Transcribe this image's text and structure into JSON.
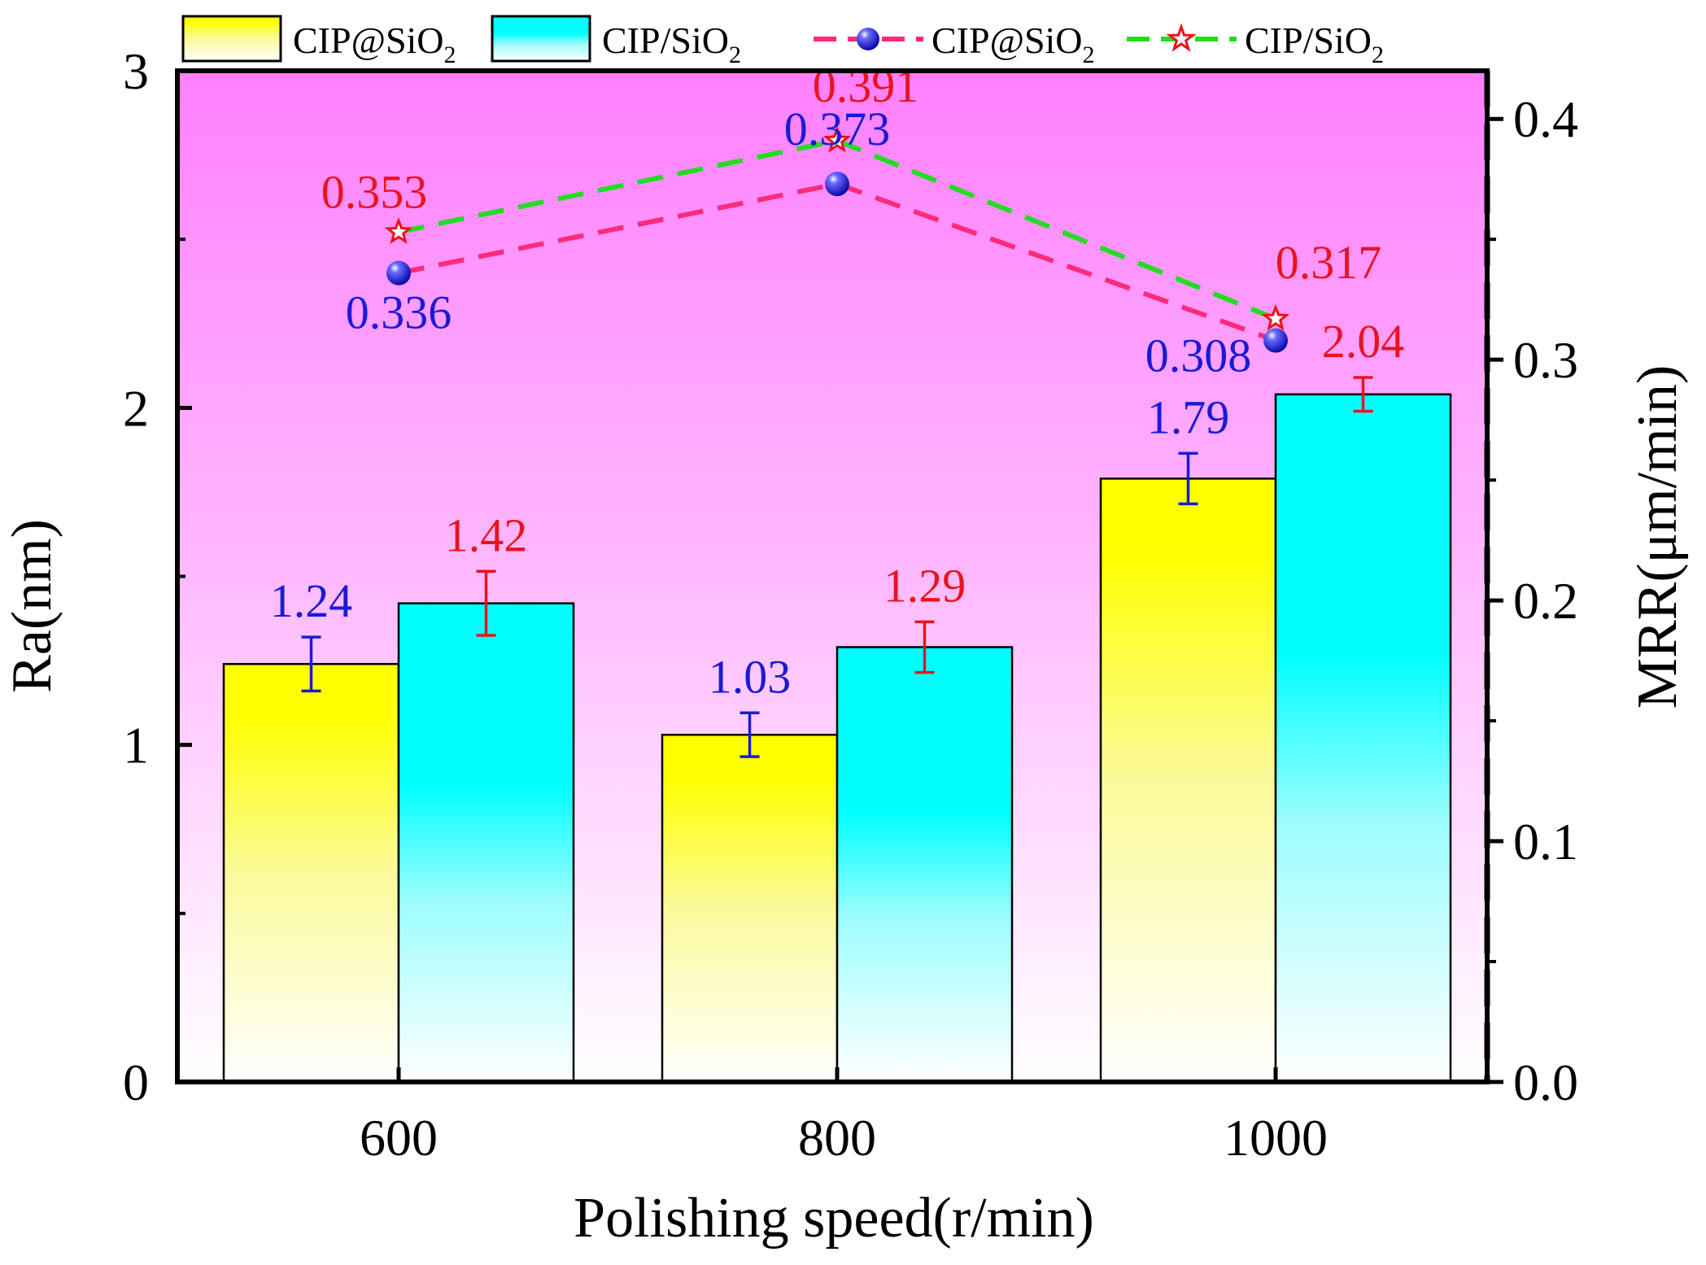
{
  "chart_data": {
    "type": "bar",
    "title": "",
    "xlabel": "Polishing speed(r/min)",
    "ylabel": "Ra(nm)",
    "y2label": "MRR(μm/min)",
    "categories": [
      "600",
      "800",
      "1000"
    ],
    "ylim": [
      0,
      3
    ],
    "y2lim": [
      0,
      0.42
    ],
    "y_ticks": [
      0,
      1,
      2,
      3
    ],
    "y_tick_labels": [
      "0",
      "1",
      "2",
      "3"
    ],
    "y2_ticks": [
      0.0,
      0.1,
      0.2,
      0.3,
      0.4
    ],
    "y2_tick_labels": [
      "0.0",
      "0.1",
      "0.2",
      "0.3",
      "0.4"
    ],
    "bar_series": [
      {
        "name": "CIP@SiO2",
        "values": [
          1.24,
          1.03,
          1.79
        ],
        "errors": [
          0.08,
          0.065,
          0.075
        ],
        "labels": [
          "1.24",
          "1.03",
          "1.79"
        ],
        "color": "#ffff00",
        "label_color": "#1a1ad6"
      },
      {
        "name": "CIP/SiO2",
        "values": [
          1.42,
          1.29,
          2.04
        ],
        "errors": [
          0.095,
          0.075,
          0.05
        ],
        "labels": [
          "1.42",
          "1.29",
          "2.04"
        ],
        "color": "#00ffff",
        "label_color": "#e8141e"
      }
    ],
    "line_series": [
      {
        "name": "CIP@SiO2",
        "values": [
          0.336,
          0.373,
          0.308
        ],
        "labels": [
          "0.336",
          "0.373",
          "0.308"
        ],
        "marker": "sphere",
        "line_color": "#ff2a7a",
        "marker_color": "#1a1ae0",
        "label_color": "#1a1ad6"
      },
      {
        "name": "CIP/SiO2",
        "values": [
          0.353,
          0.391,
          0.317
        ],
        "labels": [
          "0.353",
          "0.391",
          "0.317"
        ],
        "marker": "star",
        "line_color": "#22dd22",
        "marker_color": "#ee1111",
        "label_color": "#e8141e"
      }
    ],
    "legend": {
      "position": "top",
      "items": [
        {
          "type": "bar",
          "base": "CIP@SiO",
          "sub": "2"
        },
        {
          "type": "bar",
          "base": "CIP/SiO",
          "sub": "2"
        },
        {
          "type": "line",
          "base": "CIP@SiO",
          "sub": "2"
        },
        {
          "type": "line",
          "base": "CIP/SiO",
          "sub": "2"
        }
      ]
    },
    "colors": {
      "background_top": "#ff80ff",
      "background_bottom": "#ffffff",
      "axis": "#000000"
    }
  }
}
